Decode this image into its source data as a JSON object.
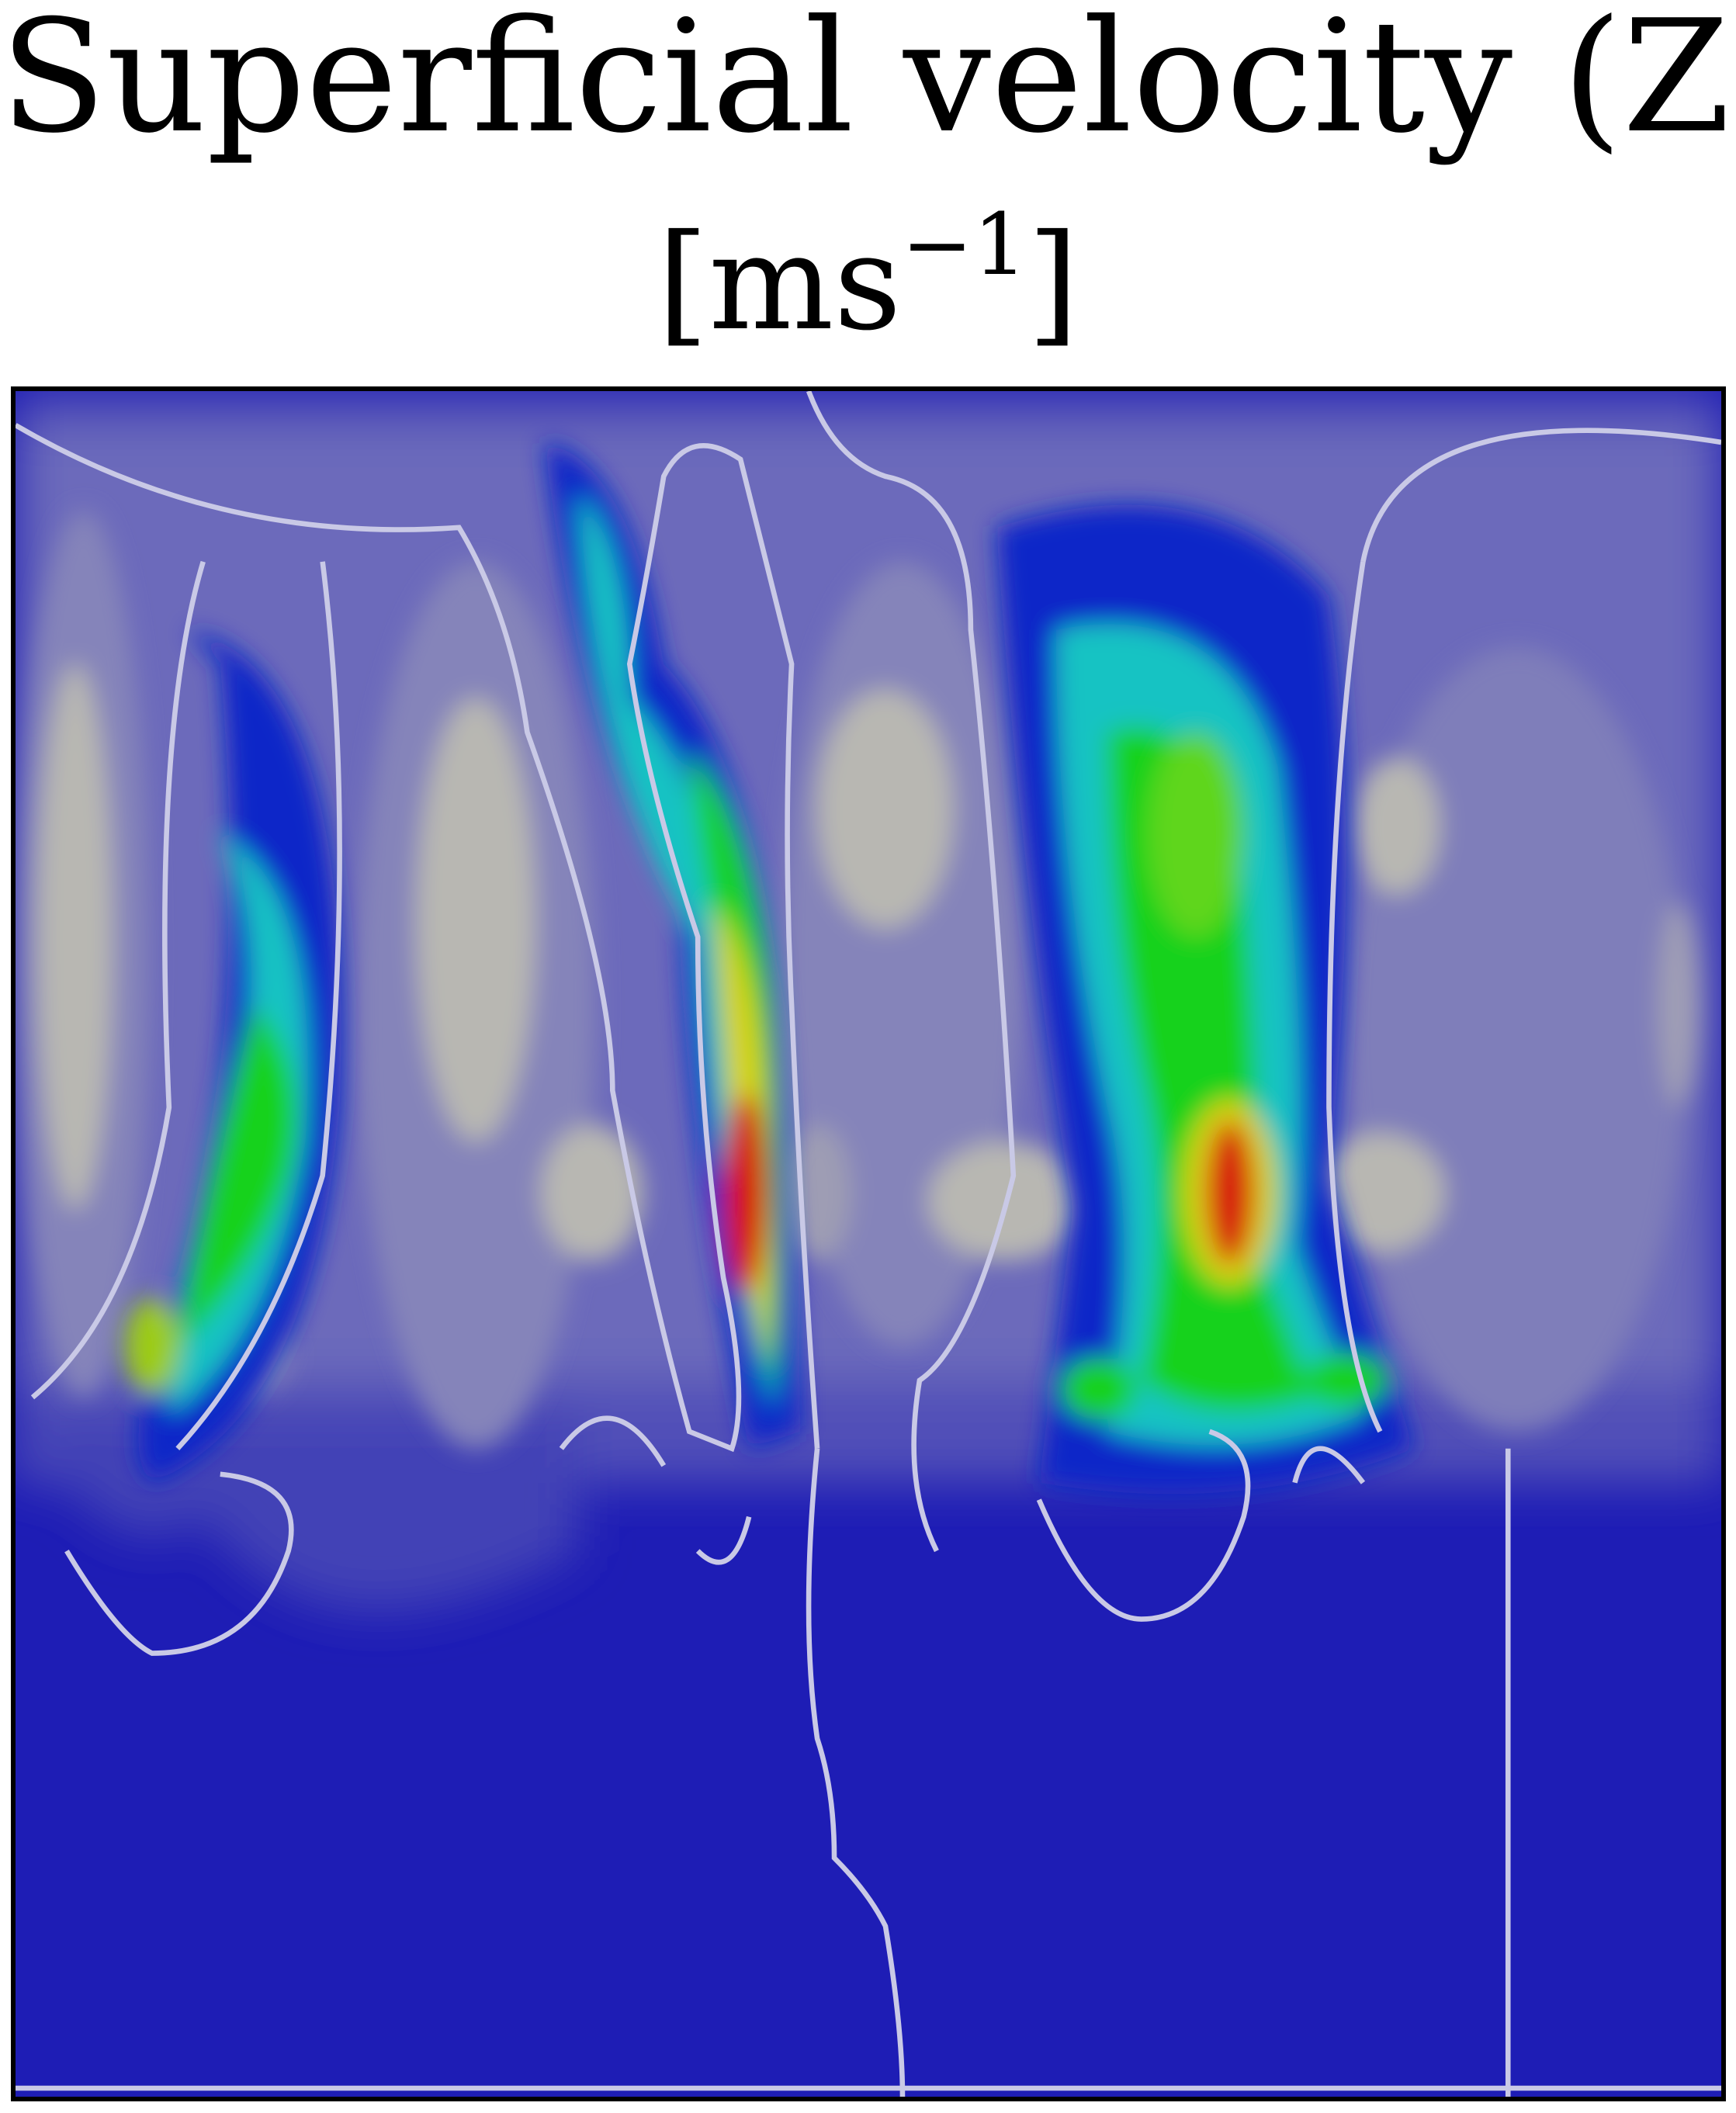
{
  "title": {
    "line1": "Superficial velocity (Z)",
    "unit_base": "[ms",
    "unit_sup": "−1",
    "unit_close": "]"
  },
  "colors": {
    "background_flow": "#1e1db5",
    "lobe_light": "#b8b7b2",
    "lobe_mid": "#8a88bb",
    "lobe_dim": "#5b5ab8",
    "contour": "#c9c9e6",
    "plume_blue": "#0a28c8",
    "plume_cyan": "#16c3c3",
    "plume_green": "#12d21a",
    "plume_yellow": "#d7d212",
    "plume_red": "#d7160e"
  },
  "chart_data": {
    "type": "heatmap",
    "title": "Superficial velocity (Z)",
    "subtitle": "[ms−1]",
    "legend": "none",
    "grid": false,
    "colormap": "rainbow",
    "features": [
      {
        "kind": "upflow-plume",
        "position": "left",
        "peak_level": "green-yellow"
      },
      {
        "kind": "upflow-plume",
        "position": "center-left",
        "peak_level": "red"
      },
      {
        "kind": "upflow-plume",
        "position": "center-right",
        "peak_level": "orange-red"
      },
      {
        "kind": "downflow-lobe",
        "position": "far-left",
        "level": "light"
      },
      {
        "kind": "downflow-lobe",
        "position": "left-center",
        "level": "light"
      },
      {
        "kind": "downflow-lobe",
        "position": "center",
        "level": "light"
      },
      {
        "kind": "downflow-lobe",
        "position": "right",
        "level": "light"
      },
      {
        "kind": "uniform-region",
        "position": "bottom",
        "level": "dark-blue"
      }
    ]
  }
}
